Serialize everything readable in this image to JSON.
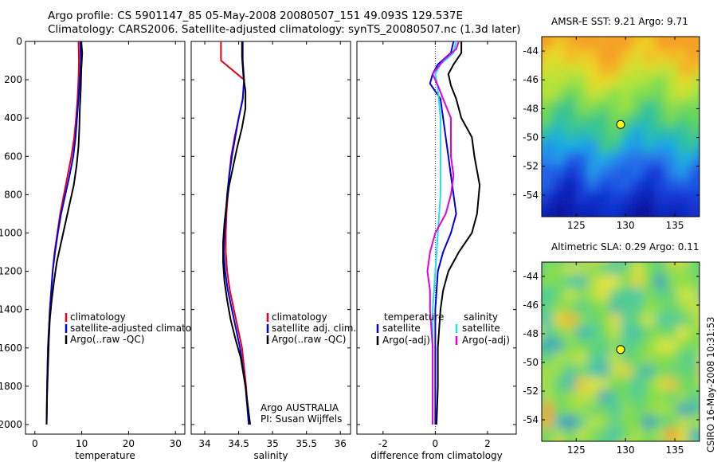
{
  "header": {
    "line1": "Argo profile: CS 5901147_85 05-May-2008 20080507_151 49.093S 129.537E",
    "line2": "Climatology: CARS2006. Satellite-adjusted climatology: synTS_20080507.nc (1.3d later)"
  },
  "credit": "CSIRO 16-May-2008 10:31:53",
  "colors": {
    "red": "#e0001a",
    "blue": "#0000e0",
    "black": "#000000",
    "cyan": "#22e0e8",
    "magenta": "#e000e0",
    "marker": "#ffff00"
  },
  "maps": {
    "sst": {
      "title": "AMSR-E SST: 9.21 Argo: 9.71",
      "lon": [
        121.5,
        137.5
      ],
      "lat": [
        -55.5,
        -43
      ],
      "xticks": [
        125,
        130,
        135
      ],
      "yticks": [
        -44,
        -46,
        -48,
        -50,
        -52,
        -54
      ],
      "marker": {
        "lon": 129.5,
        "lat": -49.1
      }
    },
    "sla": {
      "title": "Altimetric SLA: 0.29 Argo: 0.11",
      "lon": [
        121.5,
        137.5
      ],
      "lat": [
        -55.5,
        -43
      ],
      "xticks": [
        125,
        130,
        135
      ],
      "yticks": [
        -44,
        -46,
        -48,
        -50,
        -52,
        -54
      ],
      "marker": {
        "lon": 129.5,
        "lat": -49.1
      }
    }
  },
  "chart_data": [
    {
      "type": "line",
      "xlabel": "temperature",
      "xlim": [
        -2,
        32
      ],
      "ylim": [
        0,
        2050
      ],
      "y_reversed": true,
      "xticks": [
        0,
        10,
        20,
        30
      ],
      "yticks": [
        0,
        200,
        400,
        600,
        800,
        1000,
        1200,
        1400,
        1600,
        1800,
        2000
      ],
      "legend": [
        "climatology",
        "satellite-adjusted climatology",
        "Argo(..raw -QC)"
      ],
      "series": [
        {
          "name": "climatology",
          "color": "red",
          "points": [
            [
              9.3,
              0
            ],
            [
              9.4,
              100
            ],
            [
              9.3,
              200
            ],
            [
              9.1,
              300
            ],
            [
              8.8,
              400
            ],
            [
              8.4,
              500
            ],
            [
              7.8,
              600
            ],
            [
              7.0,
              700
            ],
            [
              6.2,
              800
            ],
            [
              5.4,
              900
            ],
            [
              4.8,
              1000
            ],
            [
              4.2,
              1100
            ],
            [
              3.8,
              1200
            ],
            [
              3.5,
              1300
            ],
            [
              3.2,
              1400
            ],
            [
              3.0,
              1500
            ],
            [
              2.8,
              1600
            ],
            [
              2.6,
              1800
            ],
            [
              2.5,
              2000
            ]
          ]
        },
        {
          "name": "satellite-adjusted climatology",
          "color": "blue",
          "points": [
            [
              9.7,
              0
            ],
            [
              9.8,
              100
            ],
            [
              9.6,
              200
            ],
            [
              9.3,
              300
            ],
            [
              9.0,
              400
            ],
            [
              8.7,
              500
            ],
            [
              8.2,
              600
            ],
            [
              7.4,
              700
            ],
            [
              6.5,
              800
            ],
            [
              5.6,
              900
            ],
            [
              4.9,
              1000
            ],
            [
              4.3,
              1100
            ],
            [
              3.8,
              1200
            ],
            [
              3.5,
              1300
            ],
            [
              3.2,
              1400
            ],
            [
              3.0,
              1500
            ],
            [
              2.8,
              1600
            ],
            [
              2.6,
              1800
            ],
            [
              2.5,
              2000
            ]
          ]
        },
        {
          "name": "Argo(..raw -QC)",
          "color": "black",
          "points": [
            [
              9.9,
              0
            ],
            [
              10.1,
              60
            ],
            [
              9.9,
              150
            ],
            [
              9.8,
              250
            ],
            [
              9.6,
              350
            ],
            [
              9.5,
              450
            ],
            [
              9.3,
              550
            ],
            [
              8.9,
              650
            ],
            [
              8.3,
              750
            ],
            [
              7.4,
              850
            ],
            [
              6.5,
              950
            ],
            [
              5.6,
              1050
            ],
            [
              4.7,
              1150
            ],
            [
              4.1,
              1250
            ],
            [
              3.6,
              1350
            ],
            [
              3.2,
              1450
            ],
            [
              3.0,
              1550
            ],
            [
              2.8,
              1700
            ],
            [
              2.6,
              1850
            ],
            [
              2.5,
              2000
            ]
          ]
        }
      ]
    },
    {
      "type": "line",
      "xlabel": "salinity",
      "xlim": [
        33.8,
        36.15
      ],
      "ylim": [
        0,
        2050
      ],
      "y_reversed": true,
      "xticks": [
        34,
        34.5,
        35,
        35.5,
        36
      ],
      "yticks": [
        0,
        200,
        400,
        600,
        800,
        1000,
        1200,
        1400,
        1600,
        1800,
        2000
      ],
      "legend": [
        "climatology",
        "satellite adj. clim.",
        "Argo(..raw -QC)"
      ],
      "annotation": [
        "Argo AUSTRALIA",
        "PI: Susan Wijffels"
      ],
      "series": [
        {
          "name": "climatology",
          "color": "red",
          "points": [
            [
              34.24,
              0
            ],
            [
              34.24,
              100
            ],
            [
              34.58,
              200
            ],
            [
              34.56,
              300
            ],
            [
              34.5,
              400
            ],
            [
              34.44,
              500
            ],
            [
              34.39,
              600
            ],
            [
              34.36,
              700
            ],
            [
              34.34,
              800
            ],
            [
              34.32,
              900
            ],
            [
              34.31,
              1000
            ],
            [
              34.31,
              1100
            ],
            [
              34.33,
              1200
            ],
            [
              34.37,
              1300
            ],
            [
              34.43,
              1400
            ],
            [
              34.49,
              1500
            ],
            [
              34.55,
              1600
            ],
            [
              34.61,
              1800
            ],
            [
              34.65,
              2000
            ]
          ]
        },
        {
          "name": "satellite adj. clim.",
          "color": "blue",
          "points": [
            [
              34.56,
              0
            ],
            [
              34.56,
              100
            ],
            [
              34.58,
              200
            ],
            [
              34.56,
              300
            ],
            [
              34.5,
              400
            ],
            [
              34.45,
              500
            ],
            [
              34.4,
              600
            ],
            [
              34.36,
              700
            ],
            [
              34.33,
              800
            ],
            [
              34.31,
              900
            ],
            [
              34.29,
              1000
            ],
            [
              34.28,
              1100
            ],
            [
              34.3,
              1200
            ],
            [
              34.34,
              1300
            ],
            [
              34.4,
              1400
            ],
            [
              34.46,
              1500
            ],
            [
              34.52,
              1600
            ],
            [
              34.6,
              1800
            ],
            [
              34.65,
              2000
            ]
          ]
        },
        {
          "name": "Argo(..raw -QC)",
          "color": "black",
          "points": [
            [
              34.55,
              0
            ],
            [
              34.55,
              80
            ],
            [
              34.57,
              180
            ],
            [
              34.6,
              260
            ],
            [
              34.6,
              350
            ],
            [
              34.55,
              450
            ],
            [
              34.48,
              550
            ],
            [
              34.42,
              650
            ],
            [
              34.36,
              750
            ],
            [
              34.32,
              850
            ],
            [
              34.29,
              950
            ],
            [
              34.27,
              1050
            ],
            [
              34.27,
              1150
            ],
            [
              34.29,
              1250
            ],
            [
              34.33,
              1350
            ],
            [
              34.38,
              1450
            ],
            [
              34.45,
              1550
            ],
            [
              34.53,
              1650
            ],
            [
              34.6,
              1800
            ],
            [
              34.67,
              2000
            ]
          ]
        }
      ]
    },
    {
      "type": "line",
      "xlabel": "difference from climatology",
      "xlim": [
        -3,
        3.1
      ],
      "ylim": [
        0,
        2050
      ],
      "y_reversed": true,
      "xticks": [
        -2,
        0,
        2
      ],
      "yticks": [
        0,
        200,
        400,
        600,
        800,
        1000,
        1200,
        1400,
        1600,
        1800,
        2000
      ],
      "legend_groups": [
        {
          "title": "temperature",
          "items": [
            "satellite",
            "Argo(-adj)"
          ]
        },
        {
          "title": "salinity",
          "items": [
            "satellite",
            "Argo(-adj)"
          ]
        }
      ],
      "series": [
        {
          "name": "satellite",
          "group": "temperature",
          "color": "blue",
          "points": [
            [
              0.7,
              0
            ],
            [
              0.6,
              60
            ],
            [
              0.1,
              120
            ],
            [
              -0.1,
              170
            ],
            [
              -0.2,
              220
            ],
            [
              0.2,
              300
            ],
            [
              0.3,
              400
            ],
            [
              0.4,
              500
            ],
            [
              0.5,
              600
            ],
            [
              0.6,
              700
            ],
            [
              0.7,
              800
            ],
            [
              0.8,
              900
            ],
            [
              0.6,
              1000
            ],
            [
              0.3,
              1100
            ],
            [
              0.1,
              1200
            ],
            [
              0.0,
              1400
            ],
            [
              0.0,
              1600
            ],
            [
              0.0,
              1800
            ],
            [
              0.0,
              2000
            ]
          ]
        },
        {
          "name": "Argo(-adj)",
          "group": "temperature",
          "color": "black",
          "points": [
            [
              1.0,
              0
            ],
            [
              1.0,
              60
            ],
            [
              0.7,
              120
            ],
            [
              0.5,
              170
            ],
            [
              0.6,
              230
            ],
            [
              0.8,
              300
            ],
            [
              1.0,
              400
            ],
            [
              1.4,
              500
            ],
            [
              1.5,
              600
            ],
            [
              1.7,
              750
            ],
            [
              1.6,
              900
            ],
            [
              1.4,
              1000
            ],
            [
              0.9,
              1100
            ],
            [
              0.5,
              1200
            ],
            [
              0.3,
              1300
            ],
            [
              0.2,
              1400
            ],
            [
              0.1,
              1600
            ],
            [
              0.1,
              1800
            ],
            [
              0.05,
              2000
            ]
          ]
        },
        {
          "name": "satellite",
          "group": "salinity",
          "color": "cyan",
          "points": [
            [
              0.8,
              0
            ],
            [
              0.7,
              60
            ],
            [
              0.2,
              120
            ],
            [
              0.0,
              170
            ],
            [
              0.1,
              250
            ],
            [
              0.2,
              400
            ],
            [
              0.2,
              600
            ],
            [
              0.2,
              800
            ],
            [
              0.1,
              1000
            ],
            [
              0.0,
              1200
            ],
            [
              -0.1,
              1400
            ],
            [
              -0.1,
              1600
            ],
            [
              -0.1,
              1800
            ],
            [
              -0.1,
              2000
            ]
          ]
        },
        {
          "name": "Argo(-adj)",
          "group": "salinity",
          "color": "magenta",
          "points": [
            [
              0.9,
              0
            ],
            [
              0.8,
              40
            ],
            [
              0.3,
              100
            ],
            [
              -0.1,
              170
            ],
            [
              0.1,
              230
            ],
            [
              0.3,
              300
            ],
            [
              0.6,
              400
            ],
            [
              0.6,
              500
            ],
            [
              0.6,
              600
            ],
            [
              0.7,
              700
            ],
            [
              0.6,
              800
            ],
            [
              0.4,
              900
            ],
            [
              0.0,
              1000
            ],
            [
              -0.2,
              1100
            ],
            [
              -0.3,
              1200
            ],
            [
              -0.2,
              1300
            ],
            [
              -0.2,
              1400
            ],
            [
              -0.1,
              1600
            ],
            [
              -0.1,
              1800
            ],
            [
              -0.1,
              2000
            ]
          ]
        }
      ]
    }
  ]
}
